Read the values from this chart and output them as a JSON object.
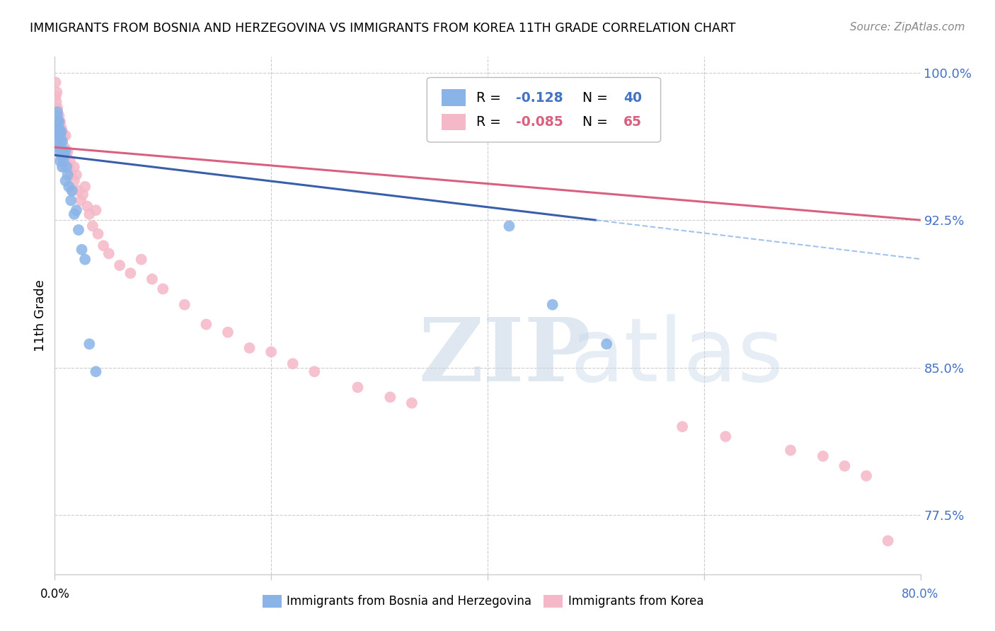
{
  "title": "IMMIGRANTS FROM BOSNIA AND HERZEGOVINA VS IMMIGRANTS FROM KOREA 11TH GRADE CORRELATION CHART",
  "source": "Source: ZipAtlas.com",
  "ylabel": "11th Grade",
  "right_ytick_values": [
    0.775,
    0.85,
    0.925,
    1.0
  ],
  "right_ytick_labels": [
    "77.5%",
    "85.0%",
    "92.5%",
    "100.0%"
  ],
  "bottom_right_label": "80.0%",
  "bottom_left_label": "0.0%",
  "legend_blue_r": "-0.128",
  "legend_blue_n": "40",
  "legend_pink_r": "-0.085",
  "legend_pink_n": "65",
  "blue_scatter_color": "#8ab4e8",
  "pink_scatter_color": "#f5b8c8",
  "blue_line_color": "#3a5faa",
  "pink_line_color": "#d96080",
  "blue_dashed_color": "#8ab4e8",
  "right_axis_color": "#4472c4",
  "watermark_text1": "ZIP",
  "watermark_text2": "atlas",
  "xlim": [
    0.0,
    0.8
  ],
  "ylim": [
    0.745,
    1.008
  ],
  "blue_scatter_x": [
    0.0008,
    0.0012,
    0.0015,
    0.002,
    0.002,
    0.0025,
    0.003,
    0.003,
    0.003,
    0.0035,
    0.004,
    0.004,
    0.0045,
    0.005,
    0.005,
    0.0055,
    0.006,
    0.006,
    0.007,
    0.007,
    0.008,
    0.008,
    0.009,
    0.01,
    0.01,
    0.011,
    0.012,
    0.013,
    0.015,
    0.016,
    0.018,
    0.02,
    0.022,
    0.025,
    0.028,
    0.032,
    0.038,
    0.42,
    0.46,
    0.51
  ],
  "blue_scatter_y": [
    0.972,
    0.968,
    0.975,
    0.978,
    0.965,
    0.98,
    0.975,
    0.968,
    0.96,
    0.972,
    0.975,
    0.962,
    0.97,
    0.968,
    0.955,
    0.965,
    0.97,
    0.958,
    0.965,
    0.952,
    0.96,
    0.955,
    0.958,
    0.96,
    0.945,
    0.952,
    0.948,
    0.942,
    0.935,
    0.94,
    0.928,
    0.93,
    0.92,
    0.91,
    0.905,
    0.862,
    0.848,
    0.922,
    0.882,
    0.862
  ],
  "pink_scatter_x": [
    0.0008,
    0.001,
    0.0015,
    0.002,
    0.002,
    0.0025,
    0.003,
    0.003,
    0.0035,
    0.004,
    0.004,
    0.0045,
    0.005,
    0.005,
    0.006,
    0.006,
    0.007,
    0.007,
    0.008,
    0.008,
    0.009,
    0.01,
    0.01,
    0.011,
    0.012,
    0.013,
    0.014,
    0.015,
    0.016,
    0.018,
    0.018,
    0.02,
    0.022,
    0.024,
    0.026,
    0.028,
    0.03,
    0.032,
    0.035,
    0.038,
    0.04,
    0.045,
    0.05,
    0.06,
    0.07,
    0.08,
    0.09,
    0.1,
    0.12,
    0.14,
    0.16,
    0.18,
    0.2,
    0.22,
    0.24,
    0.28,
    0.31,
    0.33,
    0.58,
    0.62,
    0.68,
    0.71,
    0.73,
    0.75,
    0.77
  ],
  "pink_scatter_y": [
    0.995,
    0.988,
    0.985,
    0.99,
    0.98,
    0.982,
    0.978,
    0.972,
    0.975,
    0.978,
    0.968,
    0.972,
    0.975,
    0.962,
    0.972,
    0.96,
    0.97,
    0.958,
    0.968,
    0.952,
    0.962,
    0.968,
    0.955,
    0.958,
    0.96,
    0.952,
    0.955,
    0.948,
    0.94,
    0.952,
    0.945,
    0.948,
    0.94,
    0.935,
    0.938,
    0.942,
    0.932,
    0.928,
    0.922,
    0.93,
    0.918,
    0.912,
    0.908,
    0.902,
    0.898,
    0.905,
    0.895,
    0.89,
    0.882,
    0.872,
    0.868,
    0.86,
    0.858,
    0.852,
    0.848,
    0.84,
    0.835,
    0.832,
    0.82,
    0.815,
    0.808,
    0.805,
    0.8,
    0.795,
    0.762
  ],
  "blue_line_x_start": 0.0,
  "blue_line_x_solid_end": 0.5,
  "blue_line_x_end": 0.8,
  "pink_line_x_start": 0.0,
  "pink_line_x_end": 0.8,
  "figsize": [
    14.06,
    8.92
  ],
  "dpi": 100
}
